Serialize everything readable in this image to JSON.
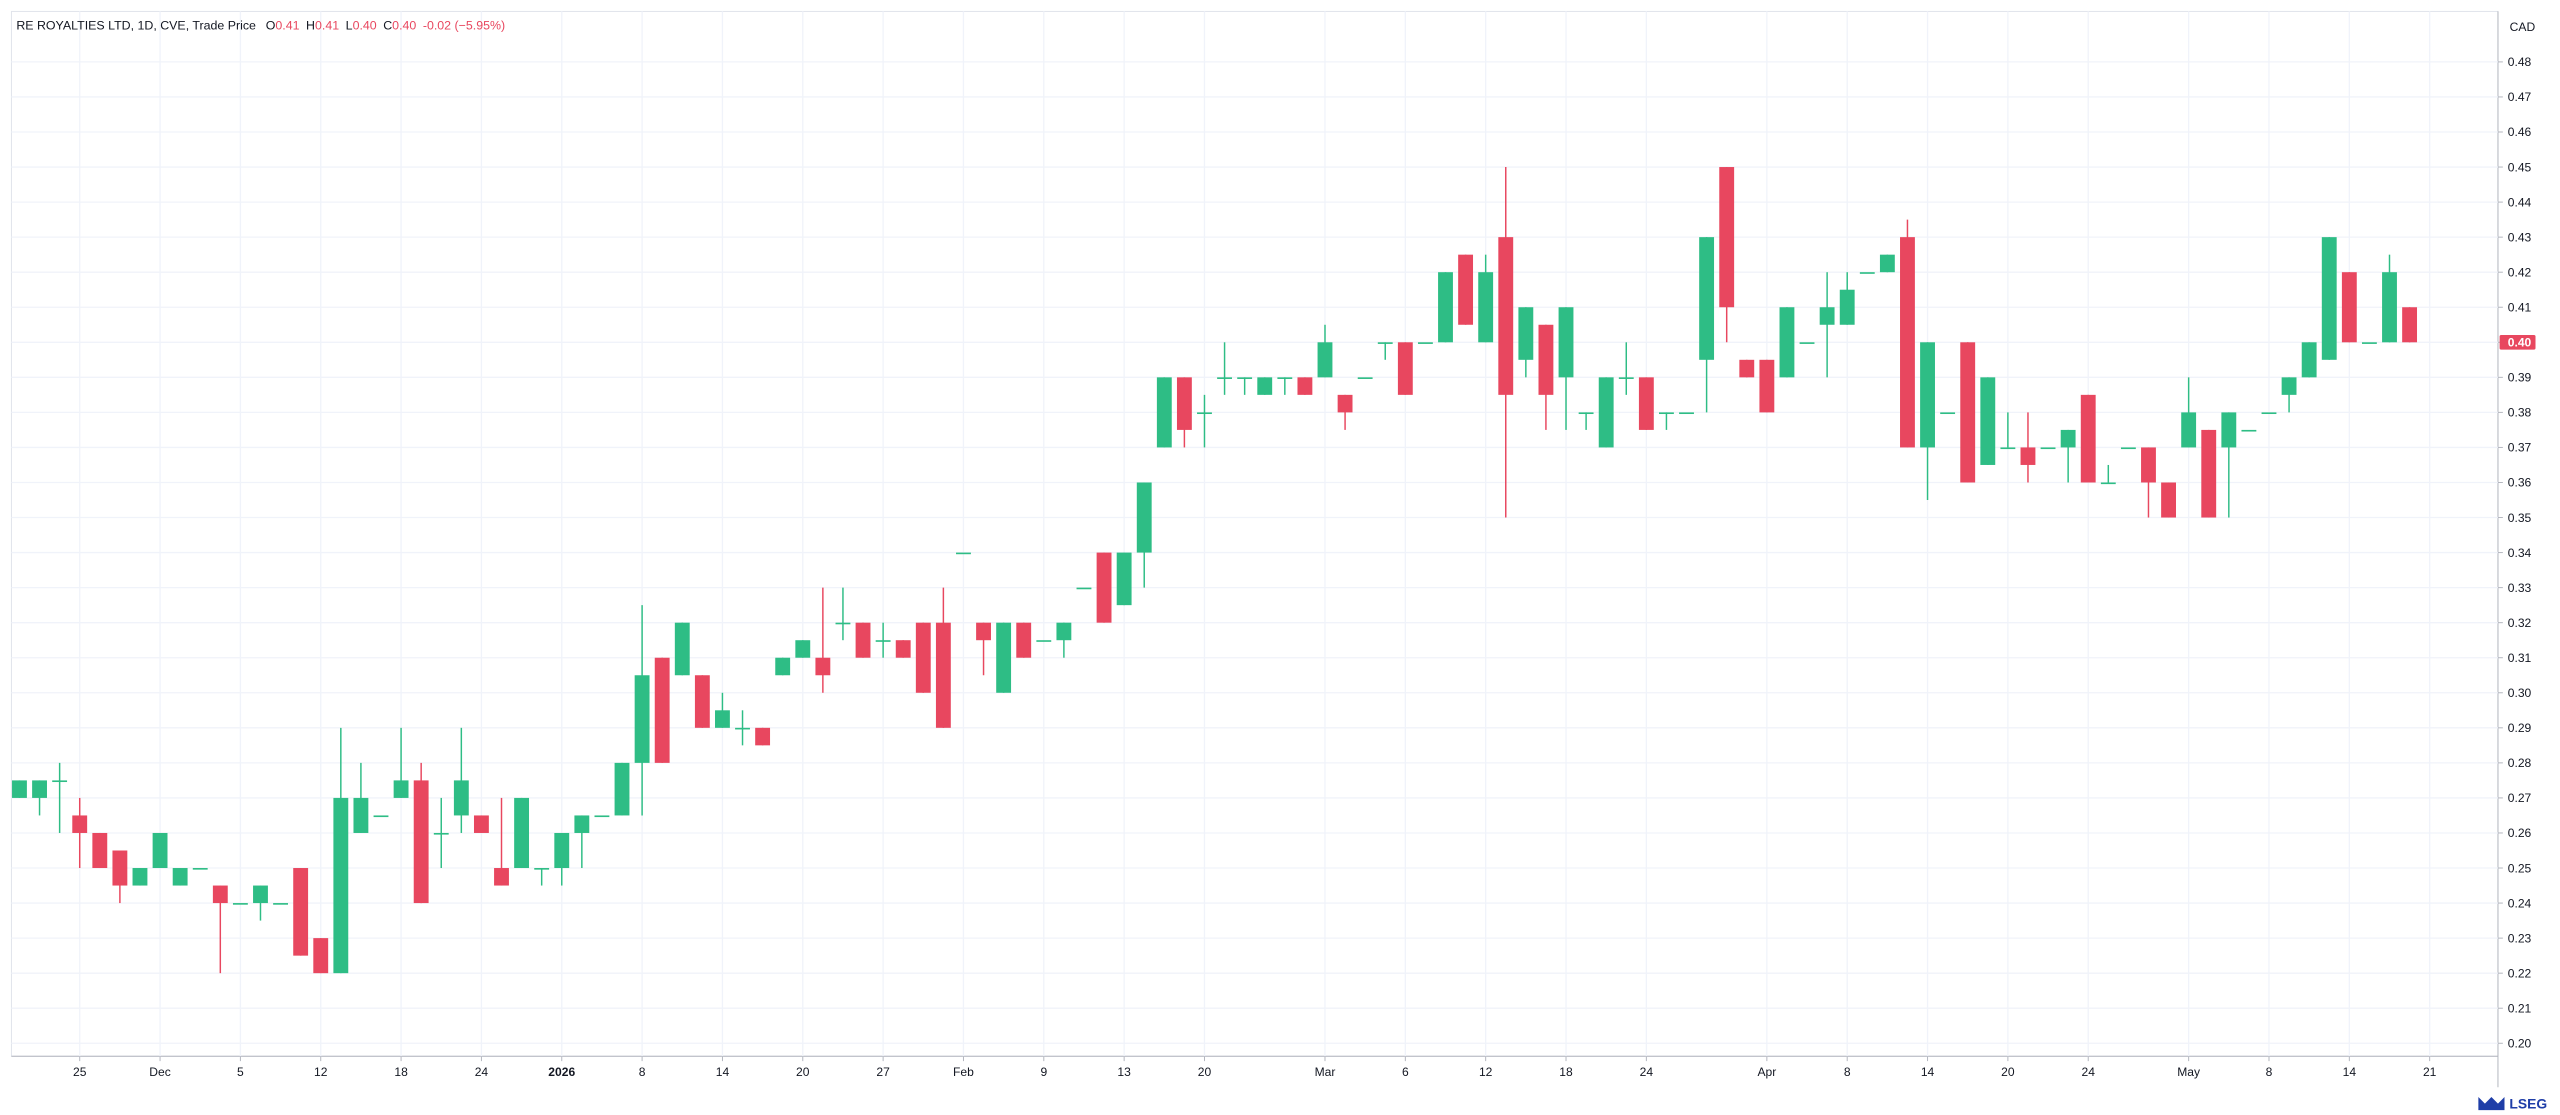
{
  "chart_data": {
    "type": "candlestick",
    "header": {
      "title": "RE ROYALTIES LTD, 1D, CVE, Trade Price",
      "ohlc": [
        {
          "key": "O",
          "value": "0.41"
        },
        {
          "key": "H",
          "value": "0.41"
        },
        {
          "key": "L",
          "value": "0.40"
        },
        {
          "key": "C",
          "value": "0.40"
        }
      ],
      "change": "-0.02 (−5.95%)"
    },
    "currency": "CAD",
    "last_price": {
      "value": 0.4,
      "label": "0.40"
    },
    "logo": "LSEG",
    "up_color": "#2ebd85",
    "down_color": "#e8475f",
    "grid": true,
    "open": [
      0.27,
      0.27,
      0.275,
      0.265,
      0.26,
      0.255,
      0.245,
      0.25,
      0.245,
      0.25,
      0.245,
      0.24,
      0.24,
      0.24,
      0.25,
      0.23,
      0.22,
      0.26,
      0.265,
      0.27,
      0.275,
      0.26,
      0.265,
      0.265,
      0.25,
      0.25,
      0.25,
      0.25,
      0.26,
      0.265,
      0.265,
      0.28,
      0.31,
      0.305,
      0.305,
      0.29,
      0.29,
      0.29,
      0.305,
      0.31,
      0.31,
      0.32,
      0.32,
      0.315,
      0.315,
      0.32,
      0.32,
      0.34,
      0.32,
      0.3,
      0.32,
      0.315,
      0.315,
      0.33,
      0.34,
      0.325,
      0.34,
      0.37,
      0.39,
      0.38,
      0.39,
      0.39,
      0.385,
      0.39,
      0.39,
      0.39,
      0.385,
      0.39,
      0.4,
      0.4,
      0.4,
      0.4,
      0.425,
      0.4,
      0.43,
      0.395,
      0.405,
      0.39,
      0.38,
      0.37,
      0.39,
      0.39,
      0.38,
      0.38,
      0.395,
      0.45,
      0.395,
      0.395,
      0.39,
      0.4,
      0.405,
      0.405,
      0.42,
      0.42,
      0.43,
      0.37,
      0.38,
      0.4,
      0.365,
      0.37,
      0.37,
      0.37,
      0.37,
      0.385,
      0.36,
      0.37,
      0.37,
      0.36,
      0.37,
      0.375,
      0.37,
      0.375,
      0.38,
      0.385,
      0.39,
      0.395,
      0.42,
      0.4,
      0.4,
      0.41
    ],
    "high": [
      0.275,
      0.275,
      0.28,
      0.27,
      0.26,
      0.255,
      0.25,
      0.26,
      0.25,
      0.25,
      0.245,
      0.24,
      0.245,
      0.24,
      0.25,
      0.23,
      0.29,
      0.28,
      0.265,
      0.29,
      0.28,
      0.27,
      0.29,
      0.265,
      0.27,
      0.27,
      0.25,
      0.26,
      0.265,
      0.265,
      0.28,
      0.325,
      0.31,
      0.32,
      0.305,
      0.3,
      0.295,
      0.29,
      0.31,
      0.315,
      0.33,
      0.33,
      0.32,
      0.32,
      0.315,
      0.32,
      0.33,
      0.34,
      0.32,
      0.32,
      0.32,
      0.315,
      0.32,
      0.33,
      0.34,
      0.34,
      0.36,
      0.39,
      0.39,
      0.385,
      0.4,
      0.39,
      0.39,
      0.39,
      0.39,
      0.405,
      0.385,
      0.39,
      0.4,
      0.4,
      0.4,
      0.42,
      0.425,
      0.425,
      0.45,
      0.41,
      0.405,
      0.41,
      0.38,
      0.39,
      0.4,
      0.39,
      0.38,
      0.38,
      0.43,
      0.45,
      0.395,
      0.395,
      0.41,
      0.4,
      0.42,
      0.42,
      0.42,
      0.425,
      0.435,
      0.4,
      0.38,
      0.4,
      0.39,
      0.38,
      0.38,
      0.37,
      0.375,
      0.385,
      0.365,
      0.37,
      0.37,
      0.36,
      0.39,
      0.375,
      0.38,
      0.375,
      0.38,
      0.39,
      0.4,
      0.43,
      0.42,
      0.4,
      0.425,
      0.41
    ],
    "low": [
      0.27,
      0.265,
      0.26,
      0.25,
      0.25,
      0.24,
      0.245,
      0.25,
      0.245,
      0.25,
      0.22,
      0.24,
      0.235,
      0.24,
      0.225,
      0.22,
      0.22,
      0.26,
      0.265,
      0.27,
      0.24,
      0.25,
      0.26,
      0.26,
      0.245,
      0.25,
      0.245,
      0.245,
      0.25,
      0.265,
      0.265,
      0.265,
      0.28,
      0.305,
      0.29,
      0.29,
      0.285,
      0.285,
      0.305,
      0.31,
      0.3,
      0.315,
      0.31,
      0.31,
      0.31,
      0.3,
      0.29,
      0.34,
      0.305,
      0.3,
      0.31,
      0.315,
      0.31,
      0.33,
      0.32,
      0.325,
      0.33,
      0.37,
      0.37,
      0.37,
      0.385,
      0.385,
      0.385,
      0.385,
      0.385,
      0.39,
      0.375,
      0.39,
      0.395,
      0.385,
      0.4,
      0.4,
      0.405,
      0.4,
      0.35,
      0.39,
      0.375,
      0.375,
      0.375,
      0.37,
      0.385,
      0.375,
      0.375,
      0.38,
      0.38,
      0.4,
      0.39,
      0.38,
      0.39,
      0.4,
      0.39,
      0.405,
      0.42,
      0.42,
      0.37,
      0.355,
      0.38,
      0.36,
      0.365,
      0.37,
      0.36,
      0.37,
      0.36,
      0.36,
      0.36,
      0.37,
      0.35,
      0.35,
      0.37,
      0.35,
      0.35,
      0.375,
      0.38,
      0.38,
      0.39,
      0.395,
      0.4,
      0.4,
      0.4,
      0.4
    ],
    "close": [
      0.275,
      0.275,
      0.275,
      0.26,
      0.25,
      0.245,
      0.25,
      0.26,
      0.25,
      0.25,
      0.24,
      0.24,
      0.245,
      0.24,
      0.225,
      0.22,
      0.27,
      0.27,
      0.265,
      0.275,
      0.24,
      0.26,
      0.275,
      0.26,
      0.245,
      0.27,
      0.25,
      0.26,
      0.265,
      0.265,
      0.28,
      0.305,
      0.28,
      0.32,
      0.29,
      0.295,
      0.29,
      0.285,
      0.31,
      0.315,
      0.305,
      0.32,
      0.31,
      0.315,
      0.31,
      0.3,
      0.29,
      0.34,
      0.315,
      0.32,
      0.31,
      0.315,
      0.32,
      0.33,
      0.32,
      0.34,
      0.36,
      0.39,
      0.375,
      0.38,
      0.39,
      0.39,
      0.39,
      0.39,
      0.385,
      0.4,
      0.38,
      0.39,
      0.4,
      0.385,
      0.4,
      0.42,
      0.405,
      0.42,
      0.385,
      0.41,
      0.385,
      0.41,
      0.38,
      0.39,
      0.39,
      0.375,
      0.38,
      0.38,
      0.43,
      0.41,
      0.39,
      0.38,
      0.41,
      0.4,
      0.41,
      0.415,
      0.42,
      0.425,
      0.37,
      0.4,
      0.38,
      0.36,
      0.39,
      0.37,
      0.365,
      0.37,
      0.375,
      0.36,
      0.36,
      0.37,
      0.36,
      0.35,
      0.38,
      0.35,
      0.38,
      0.375,
      0.38,
      0.39,
      0.4,
      0.43,
      0.4,
      0.4,
      0.42,
      0.4
    ],
    "ylim": [
      0.1963,
      0.4944
    ],
    "yticks": [
      {
        "value": 0.2,
        "label": "0.20"
      },
      0.21,
      0.22,
      0.23,
      0.24,
      0.25,
      0.26,
      0.27,
      0.28,
      0.29,
      {
        "value": 0.3,
        "label": "0.30"
      },
      0.31,
      0.32,
      0.33,
      0.34,
      0.35,
      0.36,
      0.37,
      0.38,
      0.39,
      {
        "value": 0.4,
        "label": "0.40"
      },
      0.41,
      0.42,
      0.43,
      0.44,
      0.45,
      0.46,
      0.47,
      0.48
    ],
    "xlim": [
      -0.4,
      123.4
    ],
    "xticks": [
      {
        "value": 3,
        "label": "25"
      },
      {
        "value": 7,
        "label": "Dec"
      },
      {
        "value": 11,
        "label": "5"
      },
      {
        "value": 15,
        "label": "12"
      },
      {
        "value": 19,
        "label": "18"
      },
      {
        "value": 23,
        "label": "24"
      },
      {
        "value": 27,
        "label": "2026",
        "bold": true
      },
      {
        "value": 31,
        "label": "8"
      },
      {
        "value": 35,
        "label": "14"
      },
      {
        "value": 39,
        "label": "20"
      },
      {
        "value": 43,
        "label": "27"
      },
      {
        "value": 47,
        "label": "Feb"
      },
      {
        "value": 51,
        "label": "9"
      },
      {
        "value": 55,
        "label": "13"
      },
      {
        "value": 59,
        "label": "20"
      },
      {
        "value": 65,
        "label": "Mar"
      },
      {
        "value": 69,
        "label": "6"
      },
      {
        "value": 73,
        "label": "12"
      },
      {
        "value": 77,
        "label": "18"
      },
      {
        "value": 81,
        "label": "24"
      },
      {
        "value": 87,
        "label": "Apr"
      },
      {
        "value": 91,
        "label": "8"
      },
      {
        "value": 95,
        "label": "14"
      },
      {
        "value": 99,
        "label": "20"
      },
      {
        "value": 103,
        "label": "24"
      },
      {
        "value": 108,
        "label": "May"
      },
      {
        "value": 112,
        "label": "8"
      },
      {
        "value": 116,
        "label": "14"
      },
      {
        "value": 120,
        "label": "21"
      }
    ]
  }
}
